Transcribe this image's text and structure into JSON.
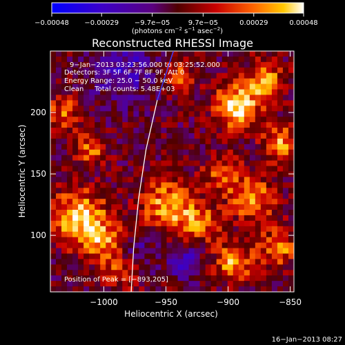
{
  "chart_data": {
    "type": "heatmap",
    "title": "Reconstructed RHESSI Image",
    "xlabel": "Heliocentric X (arcsec)",
    "ylabel": "Heliocentric Y (arcsec)",
    "x_ticks": [
      -1000,
      -950,
      -900,
      -850
    ],
    "x_tick_labels": [
      "−1000",
      "−950",
      "−900",
      "−850"
    ],
    "y_ticks": [
      100,
      150,
      200
    ],
    "y_tick_labels": [
      "100",
      "150",
      "200"
    ],
    "xlim": [
      -1043,
      -847
    ],
    "ylim": [
      54,
      250
    ],
    "colorbar": {
      "tick_values": [
        -0.00048,
        -0.00029,
        -9.7e-05,
        9.7e-05,
        0.00029,
        0.00048
      ],
      "tick_labels": [
        "−0.00048",
        "−0.00029",
        "−9.7e−05",
        "9.7e−05",
        "0.00029",
        "0.00048"
      ],
      "units_main": "(photons cm",
      "units_sup1": "−2",
      "units_mid": " s",
      "units_sup2": "−1",
      "units_end": " asec",
      "units_sup3": "−2",
      "units_close": ")"
    },
    "annotations": {
      "time": "9−Jan−2013 03:23:56.000 to 03:25:52.000",
      "detectors": "Detectors: 3F 5F 6F 7F 8F 9F, Att 0",
      "energy": "Energy Range: 25.0 − 50.0 keV",
      "clean": "Clean     Total counts: 5.48E+03",
      "peak": "Position of Peak = [−893,205]"
    },
    "limb_curve": [
      [
        -944,
        250
      ],
      [
        -957,
        210
      ],
      [
        -966,
        170
      ],
      [
        -972,
        130
      ],
      [
        -976,
        90
      ],
      [
        -978,
        54
      ]
    ],
    "peak": [
      -893,
      205
    ],
    "hotspots": [
      [
        -1032,
        200,
        55,
        10
      ],
      [
        -1010,
        170,
        60,
        9
      ],
      [
        -1020,
        115,
        95,
        15
      ],
      [
        -1000,
        95,
        60,
        12
      ],
      [
        -985,
        72,
        55,
        10
      ],
      [
        -950,
        125,
        75,
        14
      ],
      [
        -925,
        110,
        65,
        12
      ],
      [
        -905,
        150,
        50,
        11
      ],
      [
        -893,
        205,
        100,
        12
      ],
      [
        -870,
        225,
        70,
        11
      ],
      [
        -858,
        175,
        75,
        10
      ],
      [
        -880,
        130,
        70,
        13
      ],
      [
        -895,
        78,
        75,
        11
      ],
      [
        -860,
        90,
        70,
        10
      ],
      [
        -940,
        230,
        50,
        10
      ]
    ],
    "cold_regions": [
      [
        -985,
        235,
        45,
        18
      ],
      [
        -975,
        85,
        40,
        10
      ],
      [
        -935,
        80,
        45,
        10
      ]
    ]
  },
  "footer": {
    "date": "16−Jan−2013 08:27"
  }
}
